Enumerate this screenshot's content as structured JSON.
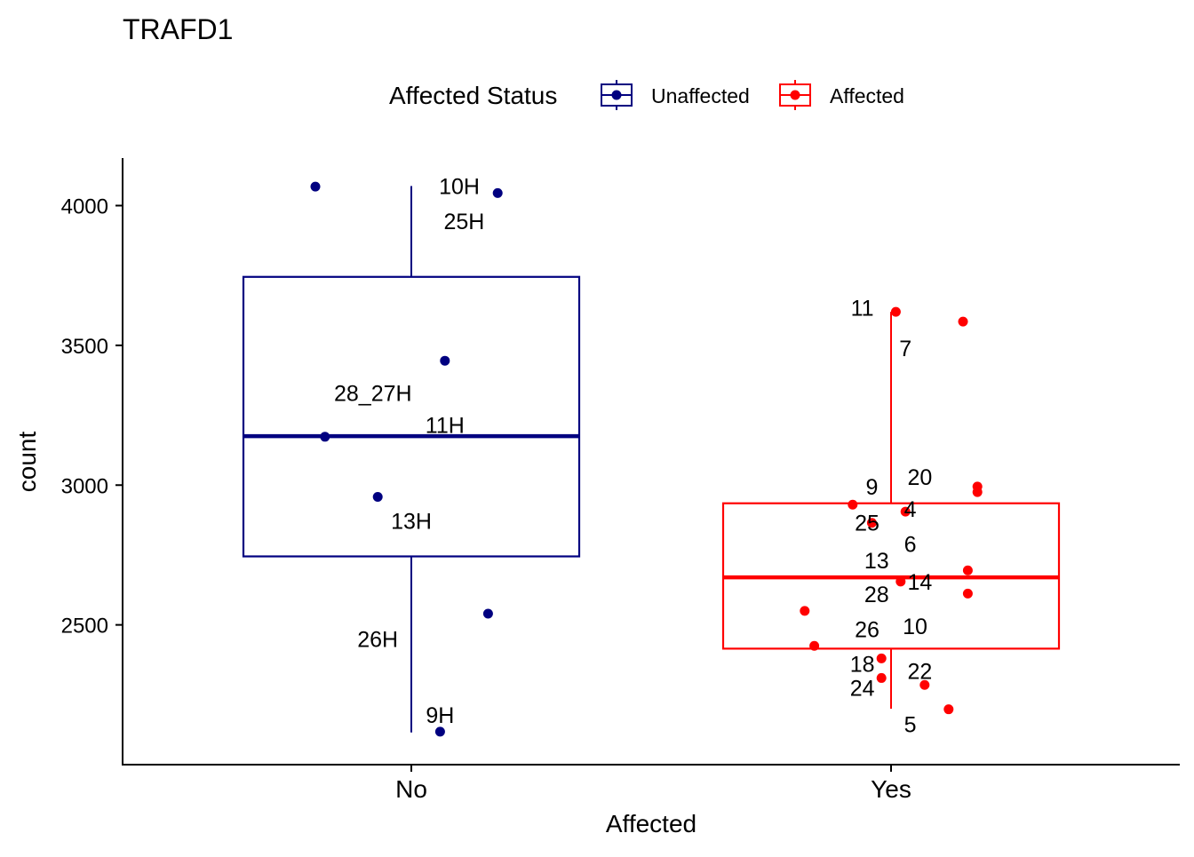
{
  "chart_data": {
    "type": "boxplot",
    "title": "TRAFD1",
    "xlabel": "Affected",
    "ylabel": "count",
    "ylim": [
      2000,
      4170
    ],
    "yticks": [
      2500,
      3000,
      3500,
      4000
    ],
    "categories": [
      "No",
      "Yes"
    ],
    "legend": {
      "title": "Affected Status",
      "position": "top",
      "entries": [
        {
          "label": "Unaffected",
          "color": "#000080"
        },
        {
          "label": "Affected",
          "color": "#ff0000"
        }
      ]
    },
    "series": [
      {
        "name": "Unaffected",
        "category": "No",
        "color": "#000080",
        "box": {
          "whisker_low": 2115,
          "q1": 2745,
          "median": 3175,
          "q3": 3745,
          "whisker_high": 4070
        },
        "points": [
          {
            "label": "10H",
            "x_jitter": -0.2,
            "y": 4068,
            "label_dx": 0.3,
            "label_y": 4070
          },
          {
            "label": "25H",
            "x_jitter": 0.18,
            "y": 4045,
            "label_dx": -0.07,
            "label_y": 3945
          },
          {
            "label": "28_27H",
            "x_jitter": 0.07,
            "y": 3445,
            "label_dx": -0.15,
            "label_y": 3330
          },
          {
            "label": "11H",
            "x_jitter": -0.18,
            "y": 3173,
            "label_dx": 0.25,
            "label_y": 3215
          },
          {
            "label": "13H",
            "x_jitter": -0.07,
            "y": 2958,
            "label_dx": 0.07,
            "label_y": 2872
          },
          {
            "label": "26H",
            "x_jitter": 0.16,
            "y": 2540,
            "label_dx": -0.23,
            "label_y": 2450
          },
          {
            "label": "9H",
            "x_jitter": 0.06,
            "y": 2118,
            "label_dx": 0.0,
            "label_y": 2178
          }
        ]
      },
      {
        "name": "Affected",
        "category": "Yes",
        "color": "#ff0000",
        "box": {
          "whisker_low": 2200,
          "q1": 2415,
          "median": 2670,
          "q3": 2935,
          "whisker_high": 3620
        },
        "points": [
          {
            "label": "11",
            "x_jitter": 0.01,
            "y": 3620,
            "label_dx": -0.07,
            "label_y": 3635
          },
          {
            "label": "7",
            "x_jitter": 0.15,
            "y": 3585,
            "label_dx": -0.12,
            "label_y": 3490
          },
          {
            "label": "20",
            "x_jitter": 0.18,
            "y": 2995,
            "label_dx": -0.12,
            "label_y": 3030
          },
          {
            "label": "9",
            "x_jitter": -0.08,
            "y": 2930,
            "label_dx": 0.04,
            "label_y": 2995
          },
          {
            "label": "4",
            "x_jitter": 0.03,
            "y": 2905,
            "label_dx": 0.01,
            "label_y": 2915
          },
          {
            "label": "25",
            "x_jitter": -0.04,
            "y": 2865,
            "label_dx": -0.01,
            "label_y": 2865
          },
          {
            "label": "6",
            "x_jitter": 0.18,
            "y": 2975,
            "label_dx": -0.14,
            "label_y": 2790
          },
          {
            "label": "13",
            "x_jitter": 0.16,
            "y": 2695,
            "label_dx": -0.19,
            "label_y": 2730
          },
          {
            "label": "14",
            "x_jitter": 0.02,
            "y": 2655,
            "label_dx": 0.04,
            "label_y": 2655
          },
          {
            "label": "28",
            "x_jitter": 0.16,
            "y": 2612,
            "label_dx": -0.19,
            "label_y": 2610
          },
          {
            "label": "26",
            "x_jitter": -0.18,
            "y": 2550,
            "label_dx": 0.13,
            "label_y": 2485
          },
          {
            "label": "10",
            "x_jitter": -0.16,
            "y": 2425,
            "label_dx": 0.21,
            "label_y": 2495
          },
          {
            "label": "18",
            "x_jitter": -0.02,
            "y": 2380,
            "label_dx": -0.04,
            "label_y": 2360
          },
          {
            "label": "22",
            "x_jitter": -0.02,
            "y": 2310,
            "label_dx": 0.08,
            "label_y": 2335
          },
          {
            "label": "24",
            "x_jitter": 0.07,
            "y": 2285,
            "label_dx": -0.13,
            "label_y": 2275
          },
          {
            "label": "5",
            "x_jitter": 0.12,
            "y": 2198,
            "label_dx": -0.08,
            "label_y": 2145
          }
        ]
      }
    ]
  }
}
